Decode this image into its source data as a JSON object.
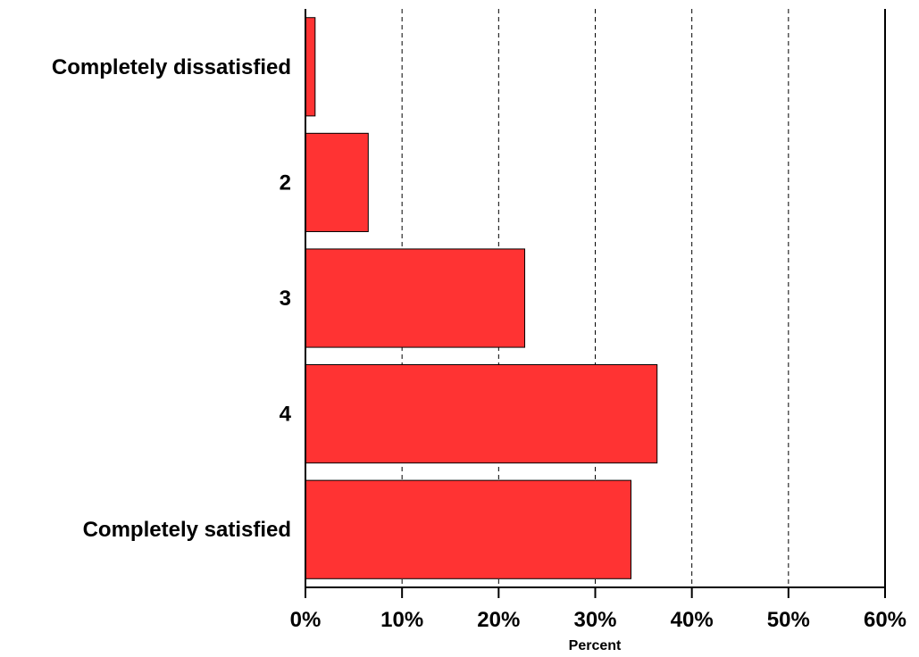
{
  "chart_data": {
    "type": "bar",
    "orientation": "horizontal",
    "categories": [
      "Completely dissatisfied",
      "2",
      "3",
      "4",
      "Completely satisfied"
    ],
    "values": [
      1,
      6.5,
      22.7,
      36.4,
      33.7
    ],
    "xlabel": "Percent",
    "ylabel": "",
    "xlim": [
      0,
      60
    ],
    "xticks": [
      "0%",
      "10%",
      "20%",
      "30%",
      "40%",
      "50%",
      "60%"
    ],
    "grid": "vertical dashed",
    "bar_color": "#ff3333",
    "bar_edge_color": "#000000"
  }
}
